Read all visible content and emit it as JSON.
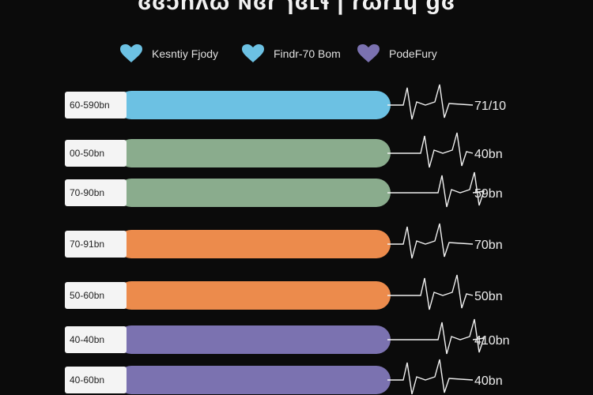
{
  "title": "ɞɞɔnʌɷ ɴɞɾ ɿɞʟɬ | ɾɷɾɪɥ ɡɞ",
  "legend": [
    {
      "label": "Kesntiy Fjody",
      "color": "#6cc1e3",
      "icon": "heart-icon"
    },
    {
      "label": "Findr-70 Bom",
      "color": "#6cc1e3",
      "icon": "heart-icon"
    },
    {
      "label": "PodeFury",
      "color": "#7b72b0",
      "icon": "heart-icon"
    }
  ],
  "chart_data": {
    "type": "bar",
    "orientation": "horizontal",
    "categories": [
      "60-590bn",
      "00-50bn",
      "70-90bn",
      "70-91bn",
      "50-60bn",
      "40-40bn",
      "40-60bn"
    ],
    "series": [
      {
        "values": [
          100,
          100,
          100,
          100,
          100,
          100,
          100
        ]
      }
    ],
    "bar_colors": [
      "#6cc1e3",
      "#8aac8d",
      "#8aac8d",
      "#ec8b4c",
      "#ec8b4c",
      "#7b72b0",
      "#7b72b0"
    ],
    "value_labels": [
      "71/10",
      "40bn",
      "59bn",
      "70bn",
      "50bn",
      "410bn",
      "40bn"
    ],
    "xlim": [
      0,
      100
    ]
  }
}
